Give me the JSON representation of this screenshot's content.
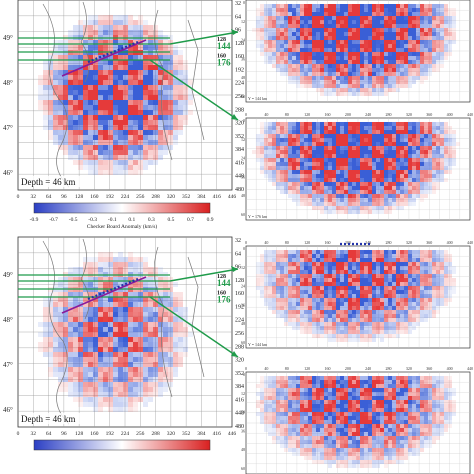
{
  "panels": [
    {
      "depth_label": "Depth = 46 km",
      "lat_labels": [
        "49°",
        "48°",
        "47°",
        "46°"
      ],
      "x_ticks": [
        "0",
        "32",
        "64",
        "96",
        "128",
        "160",
        "192",
        "224",
        "256",
        "288",
        "320",
        "352",
        "384",
        "416",
        "446"
      ],
      "y_ticks": [
        "0",
        "32",
        "64",
        "96",
        "128",
        "160",
        "192",
        "224",
        "256",
        "288",
        "320",
        "352",
        "384",
        "416",
        "448",
        "480"
      ],
      "lines": [
        "128",
        "144",
        "160",
        "176"
      ],
      "colorbar": {
        "title": "Checker Board Anomaly (km/s)",
        "ticks": [
          "-0.9",
          "-0.7",
          "-0.5",
          "-0.3",
          "-0.1",
          "0.1",
          "0.3",
          "0.5",
          "0.7",
          "0.9"
        ]
      },
      "sections": [
        {
          "label": "Y = 144 km",
          "top_ticks": [
            "0",
            "40",
            "80",
            "120",
            "160",
            "200",
            "240",
            "280",
            "320",
            "360",
            "400",
            "440"
          ],
          "left_ticks": [
            "0",
            "12",
            "24",
            "36",
            "48",
            "60"
          ]
        },
        {
          "label": "Y = 176 km",
          "top_ticks": [
            "0",
            "40",
            "80",
            "120",
            "160",
            "200",
            "240",
            "280",
            "320",
            "360",
            "400",
            "440"
          ],
          "left_ticks": [
            "0",
            "12",
            "24",
            "36",
            "48",
            "60"
          ]
        }
      ]
    },
    {
      "depth_label": "Depth = 46 km",
      "lat_labels": [
        "49°",
        "48°",
        "47°",
        "46°"
      ],
      "x_ticks": [
        "0",
        "32",
        "64",
        "96",
        "128",
        "160",
        "192",
        "224",
        "256",
        "288",
        "320",
        "352",
        "384",
        "416",
        "446"
      ],
      "y_ticks": [
        "0",
        "32",
        "64",
        "96",
        "128",
        "160",
        "192",
        "224",
        "256",
        "288",
        "320",
        "352",
        "384",
        "416",
        "448",
        "480"
      ],
      "lines": [
        "128",
        "144",
        "160",
        "176"
      ],
      "colorbar": {
        "title": "",
        "ticks": []
      },
      "sections": [
        {
          "label": "Y = 144 km",
          "top_ticks": [
            "0",
            "40",
            "80",
            "120",
            "160",
            "200",
            "240",
            "280",
            "320",
            "360",
            "400",
            "440"
          ],
          "left_ticks": [
            "0",
            "12",
            "24",
            "36",
            "48",
            "60"
          ]
        },
        {
          "label": "",
          "top_ticks": [
            "0",
            "40",
            "80",
            "120",
            "160",
            "200",
            "240",
            "280",
            "320",
            "360",
            "400",
            "440"
          ],
          "left_ticks": [
            "0",
            "12",
            "24",
            "36",
            "48",
            "60"
          ]
        }
      ]
    }
  ],
  "colors": {
    "positive": "#e53a3a",
    "negative": "#3a5fd6",
    "grid": "#9a9a9a",
    "line_green": "#1f9b4a",
    "profile_purple": "#8a1a9a",
    "stations_blue": "#2233aa"
  }
}
